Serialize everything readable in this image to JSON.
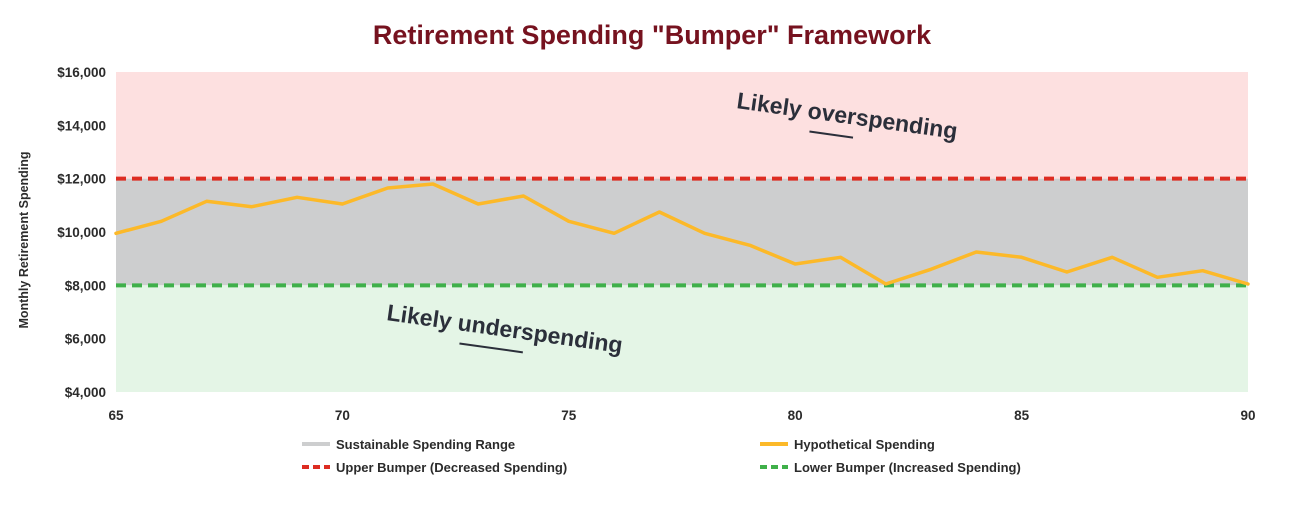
{
  "chart_data": {
    "type": "line",
    "title": "Retirement Spending \"Bumper\" Framework",
    "xlabel": "",
    "ylabel": "Monthly Retirement Spending",
    "xlim": [
      65,
      90
    ],
    "ylim": [
      4000,
      16000
    ],
    "x_ticks": [
      65,
      70,
      75,
      80,
      85,
      90
    ],
    "y_ticks": [
      4000,
      6000,
      8000,
      10000,
      12000,
      14000,
      16000
    ],
    "y_tick_labels": [
      "$4,000",
      "$6,000",
      "$8,000",
      "$10,000",
      "$12,000",
      "$14,000",
      "$16,000"
    ],
    "zones": {
      "overspending": {
        "from": 12000,
        "to": 16000,
        "color": "#fde0e0"
      },
      "sustainable": {
        "from": 8000,
        "to": 12000,
        "color": "#cdcecf",
        "name": "Sustainable Spending Range"
      },
      "underspending": {
        "from": 4000,
        "to": 8000,
        "color": "#e4f5e6"
      }
    },
    "bumpers": [
      {
        "name": "Upper Bumper (Decreased Spending)",
        "value": 12000,
        "color": "#dd2c22"
      },
      {
        "name": "Lower Bumper (Increased Spending)",
        "value": 8000,
        "color": "#3fb04a"
      }
    ],
    "series": [
      {
        "name": "Hypothetical Spending",
        "color": "#fcb929",
        "x": [
          65,
          66,
          67,
          68,
          69,
          70,
          71,
          72,
          73,
          74,
          75,
          76,
          77,
          78,
          79,
          80,
          81,
          82,
          83,
          84,
          85,
          86,
          87,
          88,
          89,
          90
        ],
        "y": [
          9950,
          10400,
          11150,
          10950,
          11300,
          11050,
          11650,
          11800,
          11050,
          11350,
          10400,
          9950,
          10750,
          9950,
          9500,
          8800,
          9050,
          8050,
          8600,
          9250,
          9050,
          8500,
          9050,
          8300,
          8550,
          8050
        ]
      }
    ],
    "annotations": [
      {
        "prefix": "Likely ",
        "emphasis": "overspending"
      },
      {
        "prefix": "Likely ",
        "emphasis": "underspending"
      }
    ],
    "legend": {
      "placement": "bottom",
      "items": [
        {
          "label": "Sustainable Spending Range",
          "color": "#cdcecf",
          "style": "solid"
        },
        {
          "label": "Hypothetical Spending",
          "color": "#fcb929",
          "style": "solid"
        },
        {
          "label": "Upper Bumper (Decreased Spending)",
          "color": "#dd2c22",
          "style": "dashed"
        },
        {
          "label": "Lower Bumper (Increased Spending)",
          "color": "#3fb04a",
          "style": "dashed"
        }
      ]
    }
  }
}
